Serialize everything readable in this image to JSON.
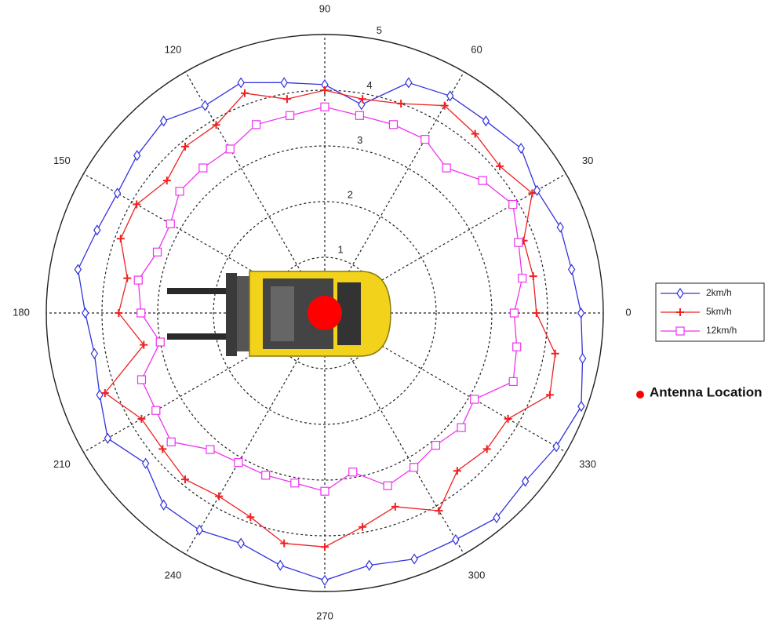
{
  "chart_data": {
    "type": "polar",
    "theta": [
      0,
      10,
      20,
      30,
      40,
      50,
      60,
      70,
      80,
      90,
      100,
      110,
      120,
      130,
      140,
      150,
      160,
      170,
      180,
      190,
      200,
      210,
      220,
      230,
      240,
      250,
      260,
      270,
      280,
      290,
      300,
      310,
      320,
      330,
      340,
      350
    ],
    "thetaticks": [
      0,
      30,
      60,
      90,
      120,
      150,
      180,
      210,
      240,
      270,
      300,
      330
    ],
    "rlim": [
      0,
      5
    ],
    "rticks": [
      1,
      2,
      3,
      4,
      5
    ],
    "legend": "right",
    "annotation": "Antenna Location",
    "annotation_color": "#ff0000",
    "series": [
      {
        "name": "2km/h",
        "color": "#3333dd",
        "marker": "diamond",
        "values": [
          4.6,
          4.5,
          4.5,
          4.4,
          4.6,
          4.5,
          4.5,
          4.4,
          3.8,
          4.1,
          4.2,
          4.4,
          4.3,
          4.5,
          4.4,
          4.3,
          4.35,
          4.5,
          4.3,
          4.2,
          4.3,
          4.5,
          4.2,
          4.5,
          4.5,
          4.4,
          4.6,
          4.8,
          4.6,
          4.7,
          4.7,
          4.8,
          4.7,
          4.8,
          4.9,
          4.7
        ]
      },
      {
        "name": "5km/h",
        "color": "#ee2222",
        "marker": "plus",
        "values": [
          3.8,
          3.8,
          3.8,
          4.3,
          4.1,
          4.2,
          4.3,
          4.0,
          3.9,
          4.0,
          3.9,
          4.2,
          3.9,
          3.9,
          3.7,
          3.9,
          3.9,
          3.6,
          3.7,
          3.3,
          4.2,
          3.8,
          3.8,
          3.9,
          3.8,
          3.9,
          4.2,
          4.2,
          3.9,
          3.7,
          4.1,
          3.7,
          3.8,
          3.8,
          4.3,
          4.2
        ]
      },
      {
        "name": "12km/h",
        "color": "#ee33ee",
        "marker": "square",
        "values": [
          3.4,
          3.6,
          3.7,
          3.9,
          3.7,
          3.4,
          3.6,
          3.6,
          3.6,
          3.7,
          3.6,
          3.6,
          3.4,
          3.4,
          3.4,
          3.2,
          3.2,
          3.4,
          3.3,
          3.0,
          3.5,
          3.5,
          3.6,
          3.2,
          3.1,
          3.1,
          3.1,
          3.2,
          2.9,
          3.3,
          3.2,
          3.1,
          3.2,
          3.1,
          3.6,
          3.5
        ]
      }
    ]
  }
}
